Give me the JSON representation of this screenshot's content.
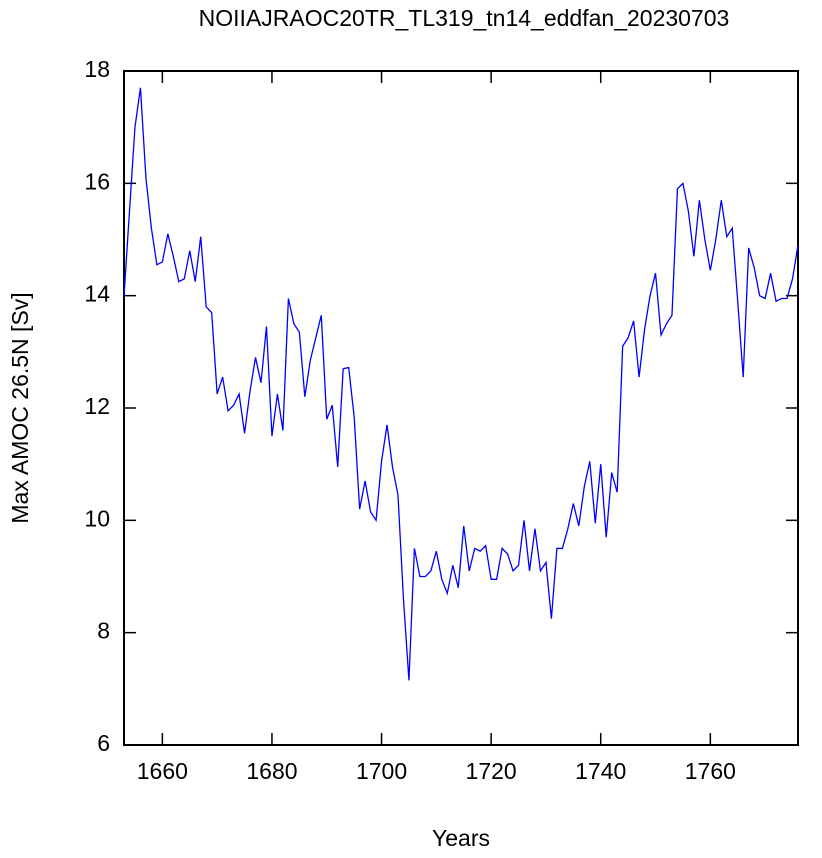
{
  "chart_data": {
    "type": "line",
    "title": "NOIIAJRAOC20TR_TL319_tn14_eddfan_20230703",
    "xlabel": "Years",
    "ylabel": "Max AMOC 26.5N [Sv]",
    "x": [
      1653,
      1654,
      1655,
      1656,
      1657,
      1658,
      1659,
      1660,
      1661,
      1662,
      1663,
      1664,
      1665,
      1666,
      1667,
      1668,
      1669,
      1670,
      1671,
      1672,
      1673,
      1674,
      1675,
      1676,
      1677,
      1678,
      1679,
      1680,
      1681,
      1682,
      1683,
      1684,
      1685,
      1686,
      1687,
      1688,
      1689,
      1690,
      1691,
      1692,
      1693,
      1694,
      1695,
      1696,
      1697,
      1698,
      1699,
      1700,
      1701,
      1702,
      1703,
      1704,
      1705,
      1706,
      1707,
      1708,
      1709,
      1710,
      1711,
      1712,
      1713,
      1714,
      1715,
      1716,
      1717,
      1718,
      1719,
      1720,
      1721,
      1722,
      1723,
      1724,
      1725,
      1726,
      1727,
      1728,
      1729,
      1730,
      1731,
      1732,
      1733,
      1734,
      1735,
      1736,
      1737,
      1738,
      1739,
      1740,
      1741,
      1742,
      1743,
      1744,
      1745,
      1746,
      1747,
      1748,
      1749,
      1750,
      1751,
      1752,
      1753,
      1754,
      1755,
      1756,
      1757,
      1758,
      1759,
      1760,
      1761,
      1762,
      1763,
      1764,
      1765,
      1766,
      1767,
      1768,
      1769,
      1770,
      1771,
      1772,
      1773,
      1774,
      1775,
      1776
    ],
    "series": [
      {
        "name": "Max AMOC 26.5N",
        "color": "#0000ff",
        "values": [
          14.0,
          15.5,
          17.0,
          17.7,
          16.1,
          15.2,
          14.55,
          14.6,
          15.1,
          14.7,
          14.25,
          14.3,
          14.8,
          14.25,
          15.05,
          13.8,
          13.7,
          12.25,
          12.55,
          11.95,
          12.05,
          12.25,
          11.55,
          12.3,
          12.9,
          12.45,
          13.45,
          11.5,
          12.25,
          11.6,
          13.95,
          13.5,
          13.35,
          12.2,
          12.85,
          13.25,
          13.65,
          11.8,
          12.05,
          10.95,
          12.7,
          12.72,
          11.85,
          10.2,
          10.7,
          10.15,
          10.0,
          11.05,
          11.7,
          10.95,
          10.45,
          8.6,
          7.15,
          9.5,
          9.0,
          9.0,
          9.1,
          9.45,
          8.95,
          8.7,
          9.2,
          8.8,
          9.9,
          9.1,
          9.5,
          9.45,
          9.55,
          8.95,
          8.95,
          9.5,
          9.4,
          9.1,
          9.2,
          10.0,
          9.1,
          9.85,
          9.1,
          9.25,
          8.25,
          9.5,
          9.5,
          9.85,
          10.3,
          9.9,
          10.6,
          11.05,
          9.95,
          11.0,
          9.7,
          10.85,
          10.5,
          13.1,
          13.25,
          13.55,
          12.55,
          13.4,
          14.0,
          14.4,
          13.3,
          13.5,
          13.65,
          15.9,
          16.0,
          15.5,
          14.7,
          15.7,
          15.0,
          14.45,
          15.0,
          15.7,
          15.05,
          15.2,
          13.9,
          12.55,
          14.85,
          14.5,
          14.0,
          13.95,
          14.4,
          13.9,
          13.95,
          13.95,
          14.3,
          14.9
        ]
      }
    ],
    "xlim": [
      1653,
      1776
    ],
    "xticks": [
      1660,
      1680,
      1700,
      1720,
      1740,
      1760
    ],
    "ylim": [
      6,
      18
    ],
    "yticks": [
      6,
      8,
      10,
      12,
      14,
      16,
      18
    ],
    "grid": false
  }
}
